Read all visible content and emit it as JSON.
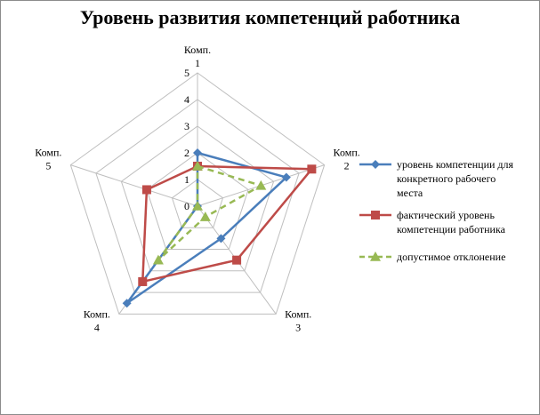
{
  "chart_data": {
    "type": "radar",
    "title": "Уровень развития компетенций работника",
    "categories": [
      [
        "Комп.",
        "1"
      ],
      [
        "Комп.",
        "2"
      ],
      [
        "Комп.",
        "3"
      ],
      [
        "Комп.",
        "4"
      ],
      [
        "Комп.",
        "5"
      ]
    ],
    "rlim": [
      0,
      5
    ],
    "ticks": [
      "0",
      "1",
      "2",
      "3",
      "4",
      "5"
    ],
    "grid": true,
    "legend_position": "right",
    "series": [
      {
        "name_lines": [
          "уровень компетенции для",
          "конкретного рабочего",
          "места"
        ],
        "color": "#4a7ebb",
        "marker": "diamond",
        "dash": false,
        "values": [
          2,
          3.5,
          1.5,
          4.5,
          0
        ]
      },
      {
        "name_lines": [
          "фактический уровень",
          "компетенции работника"
        ],
        "color": "#be4b48",
        "marker": "square",
        "dash": false,
        "values": [
          1.5,
          4.5,
          2.5,
          3.5,
          2
        ]
      },
      {
        "name_lines": [
          "допустимое отклонение"
        ],
        "color": "#98b954",
        "marker": "triangle",
        "dash": true,
        "values": [
          1.5,
          2.5,
          0.5,
          2.5,
          0
        ]
      }
    ]
  }
}
